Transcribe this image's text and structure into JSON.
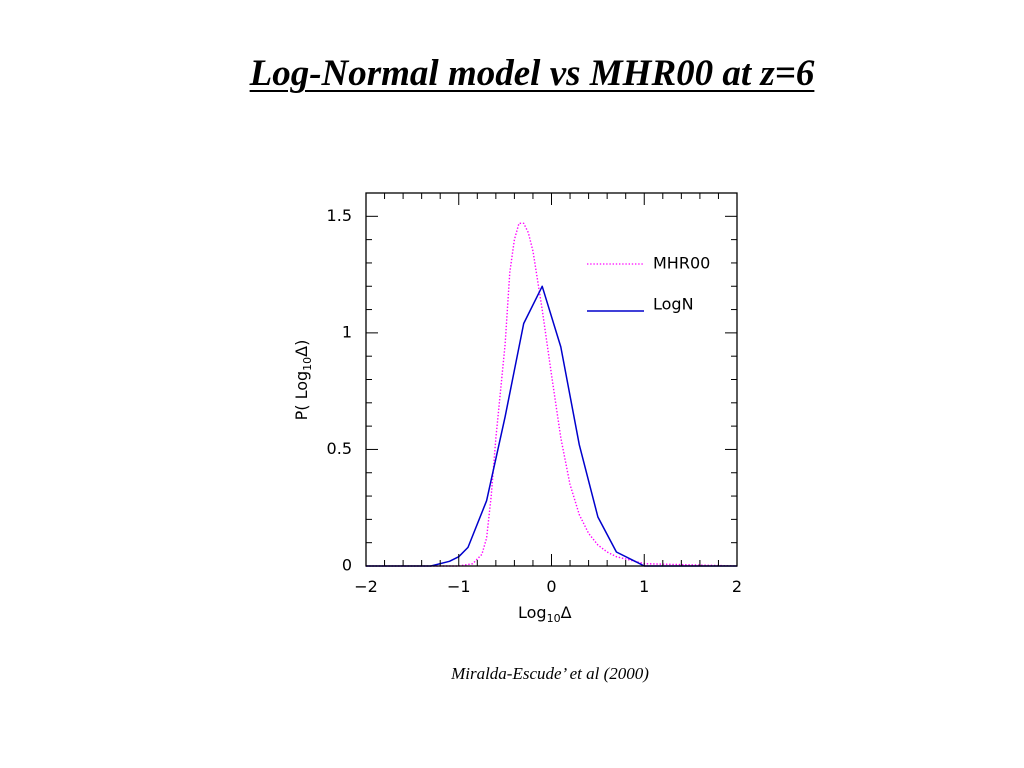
{
  "slide": {
    "title": "Log-Normal model vs MHR00 at z=6",
    "citation": "Miralda-Escude’ et al (2000)"
  },
  "chart_data": {
    "type": "line",
    "xlabel_main": "Log",
    "xlabel_sub": "10",
    "xlabel_symbol": "Δ",
    "ylabel_prefix": "P(  Log",
    "ylabel_sub": "10",
    "ylabel_suffix": "Δ)",
    "xlim": [
      -2,
      2
    ],
    "ylim": [
      0,
      1.6
    ],
    "x_ticks": [
      -2,
      -1,
      0,
      1,
      2
    ],
    "x_tick_labels": [
      "−2",
      "−1",
      "0",
      "1",
      "2"
    ],
    "y_ticks": [
      0,
      0.5,
      1,
      1.5
    ],
    "y_tick_labels": [
      "0",
      "0.5",
      "1",
      "1.5"
    ],
    "grid": false,
    "legend_position": "top-right",
    "series": [
      {
        "name": "MHR00",
        "color": "#ff00ff",
        "style": "dotted",
        "x": [
          -2.0,
          -1.2,
          -1.0,
          -0.85,
          -0.75,
          -0.7,
          -0.65,
          -0.6,
          -0.5,
          -0.45,
          -0.4,
          -0.35,
          -0.3,
          -0.25,
          -0.2,
          -0.1,
          0.0,
          0.1,
          0.2,
          0.3,
          0.4,
          0.5,
          0.6,
          0.7,
          0.8,
          1.0,
          2.0
        ],
        "y": [
          0.0,
          0.0,
          0.0,
          0.01,
          0.05,
          0.12,
          0.3,
          0.55,
          0.95,
          1.26,
          1.4,
          1.47,
          1.47,
          1.43,
          1.35,
          1.1,
          0.82,
          0.55,
          0.35,
          0.22,
          0.14,
          0.09,
          0.06,
          0.04,
          0.03,
          0.01,
          0.0
        ]
      },
      {
        "name": "LogN",
        "color": "#0000cc",
        "style": "solid",
        "x": [
          -2.0,
          -1.3,
          -1.1,
          -1.0,
          -0.9,
          -0.7,
          -0.5,
          -0.3,
          -0.1,
          0.1,
          0.3,
          0.5,
          0.7,
          0.9,
          1.0,
          2.0
        ],
        "y": [
          0.0,
          0.0,
          0.02,
          0.04,
          0.08,
          0.28,
          0.64,
          1.04,
          1.2,
          0.94,
          0.52,
          0.21,
          0.06,
          0.02,
          0.0,
          0.0
        ]
      }
    ]
  }
}
